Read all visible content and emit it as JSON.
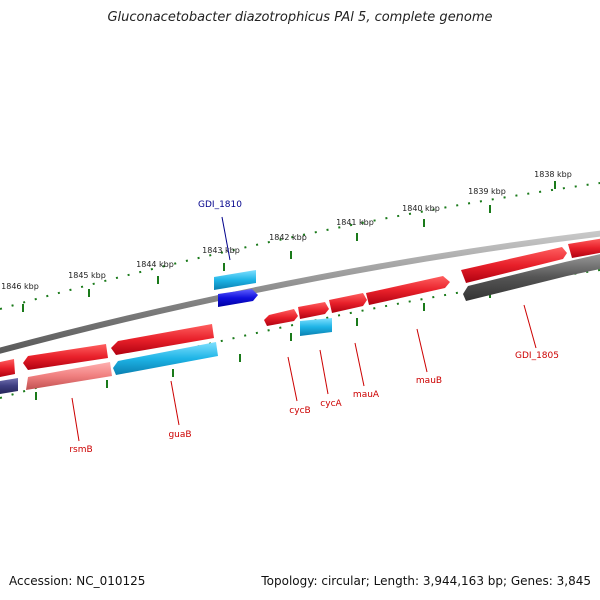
{
  "title": "Gluconacetobacter diazotrophicus PAl 5, complete genome",
  "footer": {
    "accession": "Accession: NC_010125",
    "summary": "Topology: circular; Length: 3,944,163 bp; Genes: 3,845"
  },
  "colors": {
    "backbone": "#8a8a8a",
    "forward_gene": "#e8202a",
    "reverse_gene": "#e8202a",
    "cyan_gene": "#1eb4e6",
    "blue_gene": "#1010dd",
    "gray_gene": "#555555",
    "pink_gene": "#f07f7f",
    "navy_gene": "#3d3d80",
    "tick": "#1a7a1a",
    "label_red": "#cc0000",
    "label_blue": "#00008b"
  },
  "scale": {
    "unit": "kbp",
    "tick_labels": [
      "1838 kbp",
      "1839 kbp",
      "1840 kbp",
      "1841 kbp",
      "1842 kbp",
      "1843 kbp",
      "1844 kbp",
      "1845 kbp",
      "1846 kbp"
    ]
  },
  "gene_labels": [
    {
      "name": "GDI_1810",
      "color": "blue"
    },
    {
      "name": "GDI_1805",
      "color": "red"
    },
    {
      "name": "mauB",
      "color": "red"
    },
    {
      "name": "mauA",
      "color": "red"
    },
    {
      "name": "cycA",
      "color": "red"
    },
    {
      "name": "cycB",
      "color": "red"
    },
    {
      "name": "guaB",
      "color": "red"
    },
    {
      "name": "rsmB",
      "color": "red"
    }
  ]
}
